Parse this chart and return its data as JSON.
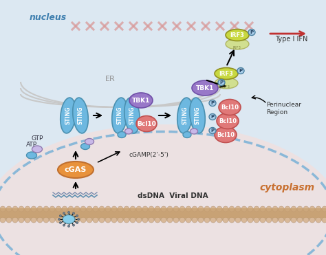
{
  "bg_color": "#dce8f2",
  "cytoplasm_label": "cytoplasm",
  "nucleus_label": "nucleus",
  "er_label": "ER",
  "dsdna_label": "dsDNA  Viral DNA",
  "cgamp_label": "cGAMP(2'-5')",
  "perinuclear_label": "Perinuclear\nRegion",
  "type_ifn_label": "Type I IFN",
  "atp_label": "ATP",
  "gtp_label": "GTP",
  "cgas_label": "cGAS",
  "sting_label": "STING",
  "bcl10_label": "Bcl10",
  "tbk1_label": "TBK1",
  "irf3_label": "IRF3",
  "p_label": "P",
  "orange_color": "#e8923c",
  "blue_color": "#6db8e0",
  "pink_color": "#e07878",
  "purple_color": "#9878c8",
  "yellow_color": "#c8d840",
  "light_blue": "#a8cce8",
  "light_purple": "#c8b8e8",
  "mem_color": "#c8a882",
  "nucleus_fill": "#f0e0e0",
  "nucleus_border": "#8ab8d8",
  "dna_color": "#d89898",
  "er_color": "#c8c8c8",
  "cytoplasm_text_color": "#c87030",
  "nucleus_text_color": "#4080b0"
}
